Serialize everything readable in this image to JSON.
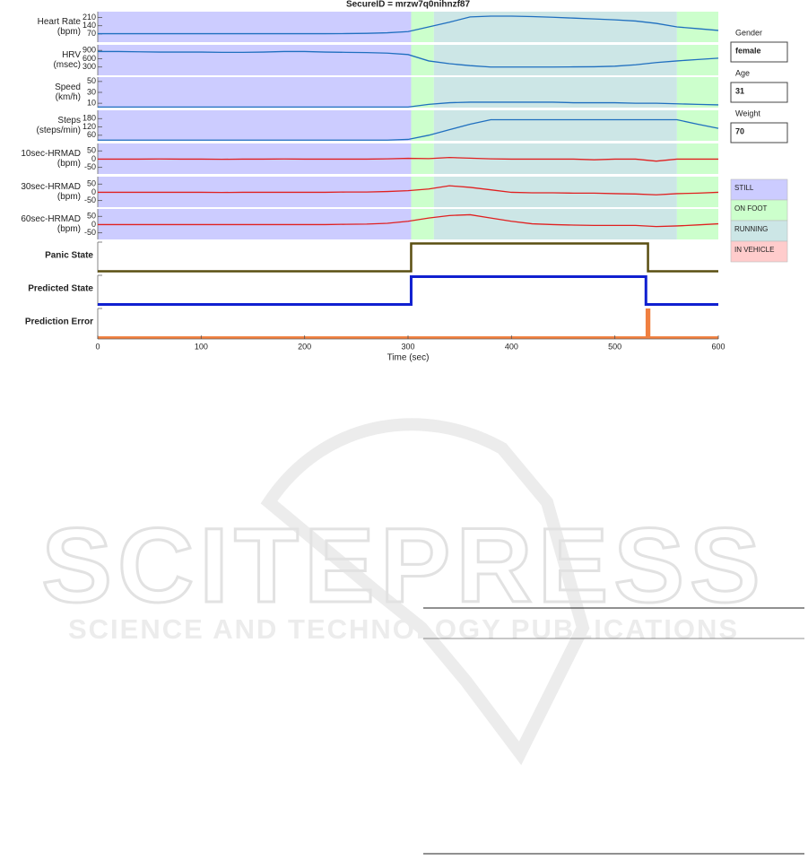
{
  "figure": {
    "title": "SecureID = mrzw7q0nihnzf87",
    "x_label": "Time (sec)",
    "segments": [
      {
        "start": 0,
        "end": 303,
        "color": "#ccccff"
      },
      {
        "start": 303,
        "end": 325,
        "color": "#ccffcc"
      },
      {
        "start": 325,
        "end": 560,
        "color": "#cce6e6"
      },
      {
        "start": 560,
        "end": 600,
        "color": "#ccffcc"
      }
    ],
    "legend": [
      {
        "label": "STILL",
        "color": "#ccccff"
      },
      {
        "label": "ON FOOT",
        "color": "#ccffcc"
      },
      {
        "label": "RUNNING",
        "color": "#cce6e6"
      },
      {
        "label": "IN VEHICLE",
        "color": "#ffcccc"
      }
    ],
    "profile": [
      {
        "label": "Gender",
        "value": "female"
      },
      {
        "label": "Age",
        "value": 31
      },
      {
        "label": "Weight",
        "value": 70
      }
    ]
  },
  "chart_data": [
    {
      "type": "line",
      "ylabel": [
        "Heart Rate",
        "(bpm)"
      ],
      "shaded": true,
      "xlim": [
        0,
        600
      ],
      "ylim": [
        0,
        260
      ],
      "yticks": [
        70,
        140,
        210
      ],
      "x": [
        0,
        20,
        40,
        60,
        80,
        100,
        120,
        140,
        160,
        180,
        200,
        220,
        240,
        260,
        280,
        300,
        320,
        340,
        360,
        380,
        400,
        420,
        440,
        460,
        480,
        500,
        520,
        540,
        560,
        580,
        600
      ],
      "series": [
        {
          "color": "#1f6fbf",
          "values": [
            72,
            72,
            72,
            72,
            72,
            72,
            72,
            72,
            72,
            72,
            72,
            72,
            73,
            75,
            80,
            90,
            130,
            170,
            215,
            222,
            222,
            218,
            212,
            205,
            198,
            190,
            180,
            160,
            130,
            115,
            100
          ]
        }
      ]
    },
    {
      "type": "line",
      "ylabel": [
        "HRV",
        "(msec)"
      ],
      "shaded": true,
      "xlim": [
        0,
        600
      ],
      "ylim": [
        0,
        1100
      ],
      "yticks": [
        300,
        600,
        900
      ],
      "x": [
        0,
        20,
        40,
        60,
        80,
        100,
        120,
        140,
        160,
        180,
        200,
        220,
        240,
        260,
        280,
        300,
        320,
        340,
        360,
        380,
        400,
        420,
        440,
        460,
        480,
        500,
        520,
        540,
        560,
        580,
        600
      ],
      "series": [
        {
          "color": "#1f6fbf",
          "values": [
            860,
            860,
            850,
            840,
            840,
            840,
            830,
            830,
            840,
            860,
            860,
            840,
            830,
            820,
            800,
            750,
            520,
            420,
            350,
            300,
            300,
            300,
            300,
            305,
            310,
            330,
            380,
            460,
            520,
            570,
            620
          ]
        }
      ]
    },
    {
      "type": "line",
      "ylabel": [
        "Speed",
        "(km/h)"
      ],
      "shaded": true,
      "xlim": [
        0,
        600
      ],
      "ylim": [
        2,
        58
      ],
      "yticks": [
        10,
        30,
        50
      ],
      "x": [
        0,
        20,
        40,
        60,
        80,
        100,
        120,
        140,
        160,
        180,
        200,
        220,
        240,
        260,
        280,
        300,
        320,
        340,
        360,
        380,
        400,
        420,
        440,
        460,
        480,
        500,
        520,
        540,
        560,
        580,
        600
      ],
      "series": [
        {
          "color": "#1f6fbf",
          "values": [
            3,
            3,
            3,
            3,
            3,
            3,
            3,
            3,
            3,
            3,
            3,
            3,
            3,
            3,
            3,
            3,
            8,
            11,
            12,
            12,
            12,
            12,
            12,
            11,
            11,
            11,
            10,
            10,
            9,
            8,
            7
          ]
        }
      ]
    },
    {
      "type": "line",
      "ylabel": [
        "Steps",
        "(steps/min)"
      ],
      "shaded": true,
      "xlim": [
        0,
        600
      ],
      "ylim": [
        20,
        240
      ],
      "yticks": [
        60,
        120,
        180
      ],
      "x": [
        0,
        20,
        40,
        60,
        80,
        100,
        120,
        140,
        160,
        180,
        200,
        220,
        240,
        260,
        280,
        300,
        320,
        340,
        360,
        380,
        400,
        420,
        440,
        460,
        480,
        500,
        520,
        540,
        560,
        580,
        600
      ],
      "series": [
        {
          "color": "#1f6fbf",
          "values": [
            25,
            25,
            25,
            25,
            25,
            25,
            25,
            25,
            25,
            25,
            25,
            25,
            25,
            25,
            25,
            30,
            60,
            100,
            140,
            172,
            172,
            172,
            172,
            172,
            172,
            172,
            172,
            172,
            172,
            140,
            110
          ]
        }
      ]
    },
    {
      "type": "line",
      "ylabel": [
        "10sec-HRMAD",
        "(bpm)"
      ],
      "shaded": true,
      "xlim": [
        0,
        600
      ],
      "ylim": [
        -90,
        95
      ],
      "yticks": [
        50,
        0,
        -50
      ],
      "x": [
        0,
        20,
        40,
        60,
        80,
        100,
        120,
        140,
        160,
        180,
        200,
        220,
        240,
        260,
        280,
        300,
        320,
        340,
        360,
        380,
        400,
        420,
        440,
        460,
        480,
        500,
        520,
        540,
        560,
        580,
        600
      ],
      "series": [
        {
          "color": "#e02020",
          "values": [
            0,
            0,
            0,
            1,
            0,
            0,
            -1,
            0,
            0,
            1,
            0,
            0,
            0,
            0,
            2,
            5,
            3,
            10,
            6,
            2,
            0,
            0,
            0,
            0,
            -4,
            0,
            0,
            -12,
            0,
            0,
            0
          ]
        }
      ]
    },
    {
      "type": "line",
      "ylabel": [
        "30sec-HRMAD",
        "(bpm)"
      ],
      "shaded": true,
      "xlim": [
        0,
        600
      ],
      "ylim": [
        -90,
        95
      ],
      "yticks": [
        50,
        0,
        -50
      ],
      "x": [
        0,
        20,
        40,
        60,
        80,
        100,
        120,
        140,
        160,
        180,
        200,
        220,
        240,
        260,
        280,
        300,
        320,
        340,
        360,
        380,
        400,
        420,
        440,
        460,
        480,
        500,
        520,
        540,
        560,
        580,
        600
      ],
      "series": [
        {
          "color": "#e02020",
          "values": [
            0,
            0,
            0,
            0,
            0,
            0,
            -1,
            0,
            0,
            0,
            0,
            0,
            2,
            2,
            5,
            10,
            20,
            40,
            30,
            15,
            0,
            -3,
            -3,
            -5,
            -5,
            -8,
            -10,
            -15,
            -8,
            -5,
            0
          ]
        }
      ]
    },
    {
      "type": "line",
      "ylabel": [
        "60sec-HRMAD",
        "(bpm)"
      ],
      "shaded": true,
      "xlim": [
        0,
        600
      ],
      "ylim": [
        -90,
        95
      ],
      "yticks": [
        50,
        0,
        -50
      ],
      "x": [
        0,
        20,
        40,
        60,
        80,
        100,
        120,
        140,
        160,
        180,
        200,
        220,
        240,
        260,
        280,
        300,
        320,
        340,
        360,
        380,
        400,
        420,
        440,
        460,
        480,
        500,
        520,
        540,
        560,
        580,
        600
      ],
      "series": [
        {
          "color": "#e02020",
          "values": [
            0,
            0,
            0,
            0,
            0,
            0,
            0,
            0,
            0,
            0,
            0,
            0,
            2,
            3,
            8,
            20,
            40,
            55,
            60,
            40,
            20,
            5,
            0,
            -3,
            -5,
            -5,
            -5,
            -12,
            -8,
            -2,
            5
          ]
        }
      ]
    },
    {
      "type": "line",
      "ylabel": [
        "Panic State"
      ],
      "bold": true,
      "xlim": [
        0,
        600
      ],
      "ylim": [
        -0.05,
        1.05
      ],
      "x": [
        0,
        303,
        303,
        532,
        532,
        600
      ],
      "series": [
        {
          "color": "#5a4e10",
          "width": 2.5,
          "values": [
            0,
            0,
            1,
            1,
            0,
            0
          ]
        }
      ]
    },
    {
      "type": "line",
      "ylabel": [
        "Predicted State"
      ],
      "bold": true,
      "xlim": [
        0,
        600
      ],
      "ylim": [
        -0.05,
        1.05
      ],
      "x": [
        0,
        303,
        303,
        530,
        530,
        600
      ],
      "series": [
        {
          "color": "#1020d0",
          "width": 3,
          "values": [
            0,
            0,
            1,
            1,
            0,
            0
          ]
        }
      ]
    },
    {
      "type": "line",
      "ylabel": [
        "Prediction Error"
      ],
      "bold": true,
      "xlim": [
        0,
        600
      ],
      "ylim": [
        -0.05,
        1.05
      ],
      "xticks": [
        0,
        100,
        200,
        300,
        400,
        500,
        600
      ],
      "x": [
        0,
        531,
        531,
        533,
        533,
        600
      ],
      "series": [
        {
          "color": "#f08040",
          "width": 3,
          "values": [
            0,
            0,
            1,
            1,
            0,
            0
          ]
        }
      ]
    }
  ],
  "watermark": {
    "name": "SCITEPRESS",
    "tagline": "SCIENCE AND TECHNOLOGY PUBLICATIONS"
  }
}
